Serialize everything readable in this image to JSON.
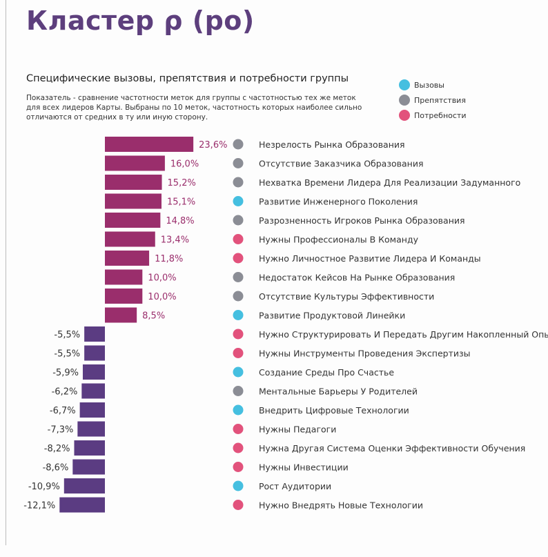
{
  "title": "Кластер ρ (ро)",
  "subtitle": "Специфические вызовы, препятствия и потребности группы",
  "description": "Показатель - сравнение частотности меток для группы с частотностью тех же меток для всех лидеров Карты. Выбраны по 10 меток, частотность которых наиболее сильно отличаются от средних в ту или иную сторону.",
  "legend": [
    {
      "key": "challenge",
      "label": "Вызовы",
      "color": "#45bfe0"
    },
    {
      "key": "obstacle",
      "label": "Препятствия",
      "color": "#8b8d95"
    },
    {
      "key": "need",
      "label": "Потребности",
      "color": "#e2527c"
    }
  ],
  "colors": {
    "positive": "#9a2e6c",
    "negative": "#5b3c82",
    "title": "#5d3f7d"
  },
  "chart_data": {
    "type": "bar",
    "orientation": "horizontal",
    "unit": "%",
    "categories": [
      "Незрелость Рынка Образования",
      "Отсутствие Заказчика Образования",
      "Нехватка Времени Лидера Для Реализации Задуманного",
      "Развитие Инженерного Поколения",
      "Разрозненность Игроков Рынка Образования",
      "Нужны Профессионалы В Команду",
      "Нужно Личностное Развитие Лидера И Команды",
      "Недостаток Кейсов На Рынке Образования",
      "Отсутствие Культуры Эффективности",
      "Развитие Продуктовой Линейки",
      "Нужно Структурировать И Передать Другим Накопленный Опыт",
      "Нужны Инструменты Проведения Экспертизы",
      "Создание Среды Про Счастье",
      "Ментальные Барьеры У Родителей",
      "Внедрить Цифровые Технологии",
      "Нужны Педагоги",
      "Нужна Другая Система Оценки Эффективности Обучения",
      "Нужны Инвестиции",
      "Рост Аудитории",
      "Нужно Внедрять Новые Технологии"
    ],
    "values": [
      23.6,
      16.0,
      15.2,
      15.1,
      14.8,
      13.4,
      11.8,
      10.0,
      10.0,
      8.5,
      -5.5,
      -5.5,
      -5.9,
      -6.2,
      -6.7,
      -7.3,
      -8.2,
      -8.6,
      -10.9,
      -12.1
    ],
    "value_labels": [
      "23,6%",
      "16,0%",
      "15,2%",
      "15,1%",
      "14,8%",
      "13,4%",
      "11,8%",
      "10,0%",
      "10,0%",
      "8,5%",
      "-5,5%",
      "-5,5%",
      "-5,9%",
      "-6,2%",
      "-6,7%",
      "-7,3%",
      "-8,2%",
      "-8,6%",
      "-10,9%",
      "-12,1%"
    ],
    "types": [
      "obstacle",
      "obstacle",
      "obstacle",
      "challenge",
      "obstacle",
      "need",
      "need",
      "obstacle",
      "obstacle",
      "challenge",
      "need",
      "need",
      "challenge",
      "obstacle",
      "challenge",
      "need",
      "need",
      "need",
      "challenge",
      "need"
    ]
  }
}
